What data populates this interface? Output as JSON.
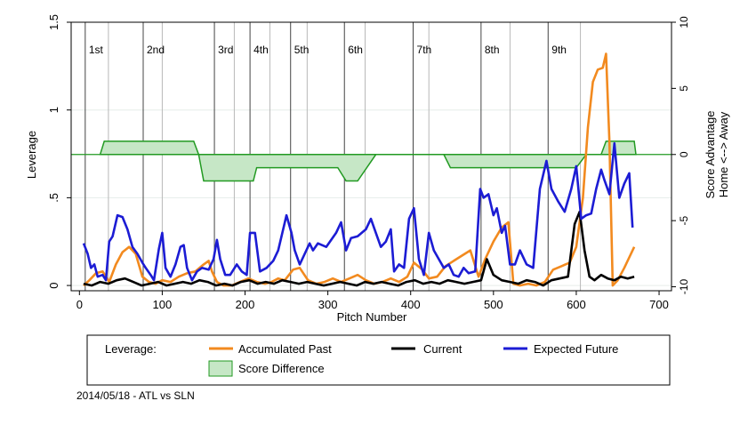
{
  "chart_data": {
    "type": "line",
    "x_label": "Pitch Number",
    "y_label": "Leverage",
    "y2_label_line1": "Score Advantage",
    "y2_label_line2": "Home <--> Away",
    "x_ticks": [
      0,
      100,
      200,
      300,
      400,
      500,
      600,
      700
    ],
    "y_ticks": [
      0,
      0.5,
      1,
      1.5
    ],
    "y_tick_labels": [
      "0",
      ".5",
      "1",
      "1.5"
    ],
    "y2_ticks": [
      -10,
      -5,
      0,
      5,
      10
    ],
    "xlim": [
      -10,
      715
    ],
    "ylim": [
      -0.03,
      1.5
    ],
    "y2lim": [
      -10.3,
      10
    ],
    "inning_lines": [
      {
        "x": 7,
        "label": "1st"
      },
      {
        "x": 77,
        "label": "2nd"
      },
      {
        "x": 163,
        "label": "3rd"
      },
      {
        "x": 206,
        "label": "4th"
      },
      {
        "x": 255,
        "label": "5th"
      },
      {
        "x": 320,
        "label": "6th"
      },
      {
        "x": 403,
        "label": "7th"
      },
      {
        "x": 485,
        "label": "8th"
      },
      {
        "x": 566,
        "label": "9th"
      }
    ],
    "half_inning_lines": [
      35,
      100,
      187,
      230,
      275,
      345,
      422,
      520,
      605
    ],
    "series": [
      {
        "name": "Accumulated Past",
        "color": "#f28a1f",
        "points": [
          [
            5,
            0.0
          ],
          [
            12,
            0.03
          ],
          [
            20,
            0.07
          ],
          [
            28,
            0.08
          ],
          [
            36,
            0.02
          ],
          [
            44,
            0.12
          ],
          [
            52,
            0.19
          ],
          [
            60,
            0.22
          ],
          [
            68,
            0.18
          ],
          [
            76,
            0.05
          ],
          [
            84,
            0.02
          ],
          [
            92,
            0.01
          ],
          [
            100,
            0.03
          ],
          [
            110,
            0.02
          ],
          [
            120,
            0.05
          ],
          [
            130,
            0.07
          ],
          [
            140,
            0.08
          ],
          [
            150,
            0.12
          ],
          [
            156,
            0.14
          ],
          [
            160,
            0.08
          ],
          [
            166,
            0.02
          ],
          [
            174,
            0.0
          ],
          [
            184,
            0.0
          ],
          [
            194,
            0.02
          ],
          [
            204,
            0.04
          ],
          [
            214,
            0.02
          ],
          [
            224,
            0.01
          ],
          [
            232,
            0.02
          ],
          [
            240,
            0.04
          ],
          [
            248,
            0.03
          ],
          [
            258,
            0.09
          ],
          [
            266,
            0.1
          ],
          [
            276,
            0.03
          ],
          [
            286,
            0.01
          ],
          [
            296,
            0.02
          ],
          [
            306,
            0.04
          ],
          [
            316,
            0.02
          ],
          [
            326,
            0.04
          ],
          [
            336,
            0.06
          ],
          [
            346,
            0.03
          ],
          [
            356,
            0.01
          ],
          [
            366,
            0.02
          ],
          [
            376,
            0.04
          ],
          [
            386,
            0.02
          ],
          [
            396,
            0.05
          ],
          [
            404,
            0.13
          ],
          [
            414,
            0.09
          ],
          [
            422,
            0.04
          ],
          [
            432,
            0.05
          ],
          [
            442,
            0.11
          ],
          [
            452,
            0.14
          ],
          [
            462,
            0.17
          ],
          [
            472,
            0.2
          ],
          [
            482,
            0.05
          ],
          [
            490,
            0.15
          ],
          [
            500,
            0.25
          ],
          [
            510,
            0.33
          ],
          [
            518,
            0.36
          ],
          [
            524,
            0.01
          ],
          [
            532,
            0.0
          ],
          [
            542,
            0.01
          ],
          [
            552,
            0.0
          ],
          [
            562,
            0.02
          ],
          [
            572,
            0.09
          ],
          [
            582,
            0.11
          ],
          [
            592,
            0.13
          ],
          [
            600,
            0.22
          ],
          [
            608,
            0.5
          ],
          [
            614,
            0.9
          ],
          [
            620,
            1.16
          ],
          [
            626,
            1.23
          ],
          [
            632,
            1.24
          ],
          [
            636,
            1.32
          ],
          [
            640,
            0.82
          ],
          [
            644,
            0.0
          ],
          [
            650,
            0.03
          ],
          [
            658,
            0.1
          ],
          [
            664,
            0.16
          ],
          [
            670,
            0.22
          ]
        ]
      },
      {
        "name": "Current",
        "color": "#000000",
        "points": [
          [
            5,
            0.01
          ],
          [
            15,
            0.0
          ],
          [
            25,
            0.02
          ],
          [
            35,
            0.01
          ],
          [
            45,
            0.03
          ],
          [
            55,
            0.04
          ],
          [
            65,
            0.02
          ],
          [
            75,
            0.0
          ],
          [
            85,
            0.01
          ],
          [
            95,
            0.02
          ],
          [
            105,
            0.0
          ],
          [
            115,
            0.01
          ],
          [
            125,
            0.02
          ],
          [
            135,
            0.01
          ],
          [
            145,
            0.03
          ],
          [
            155,
            0.02
          ],
          [
            165,
            0.0
          ],
          [
            175,
            0.01
          ],
          [
            185,
            0.0
          ],
          [
            195,
            0.02
          ],
          [
            205,
            0.03
          ],
          [
            215,
            0.01
          ],
          [
            225,
            0.02
          ],
          [
            235,
            0.01
          ],
          [
            245,
            0.03
          ],
          [
            255,
            0.02
          ],
          [
            265,
            0.01
          ],
          [
            275,
            0.02
          ],
          [
            285,
            0.01
          ],
          [
            295,
            0.0
          ],
          [
            305,
            0.01
          ],
          [
            315,
            0.02
          ],
          [
            325,
            0.01
          ],
          [
            335,
            0.0
          ],
          [
            345,
            0.02
          ],
          [
            355,
            0.01
          ],
          [
            365,
            0.02
          ],
          [
            375,
            0.01
          ],
          [
            385,
            0.0
          ],
          [
            395,
            0.02
          ],
          [
            405,
            0.03
          ],
          [
            415,
            0.01
          ],
          [
            425,
            0.02
          ],
          [
            435,
            0.01
          ],
          [
            445,
            0.03
          ],
          [
            455,
            0.02
          ],
          [
            465,
            0.01
          ],
          [
            475,
            0.02
          ],
          [
            485,
            0.03
          ],
          [
            492,
            0.15
          ],
          [
            500,
            0.06
          ],
          [
            510,
            0.03
          ],
          [
            520,
            0.02
          ],
          [
            530,
            0.01
          ],
          [
            540,
            0.03
          ],
          [
            550,
            0.02
          ],
          [
            560,
            0.0
          ],
          [
            570,
            0.03
          ],
          [
            580,
            0.04
          ],
          [
            590,
            0.05
          ],
          [
            598,
            0.35
          ],
          [
            604,
            0.42
          ],
          [
            610,
            0.2
          ],
          [
            616,
            0.05
          ],
          [
            622,
            0.03
          ],
          [
            630,
            0.06
          ],
          [
            638,
            0.04
          ],
          [
            646,
            0.03
          ],
          [
            654,
            0.05
          ],
          [
            662,
            0.04
          ],
          [
            670,
            0.05
          ]
        ]
      },
      {
        "name": "Expected Future",
        "color": "#1c1cd4",
        "points": [
          [
            5,
            0.24
          ],
          [
            10,
            0.18
          ],
          [
            14,
            0.1
          ],
          [
            18,
            0.12
          ],
          [
            22,
            0.05
          ],
          [
            28,
            0.06
          ],
          [
            32,
            0.03
          ],
          [
            36,
            0.25
          ],
          [
            40,
            0.28
          ],
          [
            46,
            0.4
          ],
          [
            52,
            0.39
          ],
          [
            58,
            0.32
          ],
          [
            64,
            0.22
          ],
          [
            70,
            0.18
          ],
          [
            76,
            0.13
          ],
          [
            80,
            0.1
          ],
          [
            86,
            0.06
          ],
          [
            90,
            0.03
          ],
          [
            96,
            0.21
          ],
          [
            100,
            0.3
          ],
          [
            104,
            0.1
          ],
          [
            110,
            0.05
          ],
          [
            116,
            0.12
          ],
          [
            122,
            0.22
          ],
          [
            126,
            0.23
          ],
          [
            130,
            0.1
          ],
          [
            136,
            0.03
          ],
          [
            142,
            0.08
          ],
          [
            148,
            0.1
          ],
          [
            156,
            0.09
          ],
          [
            162,
            0.15
          ],
          [
            166,
            0.26
          ],
          [
            170,
            0.15
          ],
          [
            176,
            0.06
          ],
          [
            182,
            0.06
          ],
          [
            190,
            0.12
          ],
          [
            196,
            0.08
          ],
          [
            202,
            0.06
          ],
          [
            206,
            0.3
          ],
          [
            212,
            0.3
          ],
          [
            218,
            0.08
          ],
          [
            226,
            0.1
          ],
          [
            234,
            0.14
          ],
          [
            240,
            0.2
          ],
          [
            250,
            0.4
          ],
          [
            256,
            0.3
          ],
          [
            260,
            0.2
          ],
          [
            266,
            0.12
          ],
          [
            272,
            0.18
          ],
          [
            278,
            0.24
          ],
          [
            282,
            0.2
          ],
          [
            288,
            0.24
          ],
          [
            298,
            0.22
          ],
          [
            310,
            0.3
          ],
          [
            316,
            0.36
          ],
          [
            322,
            0.2
          ],
          [
            328,
            0.27
          ],
          [
            336,
            0.28
          ],
          [
            346,
            0.32
          ],
          [
            352,
            0.38
          ],
          [
            358,
            0.3
          ],
          [
            364,
            0.22
          ],
          [
            370,
            0.25
          ],
          [
            376,
            0.32
          ],
          [
            380,
            0.08
          ],
          [
            386,
            0.12
          ],
          [
            392,
            0.1
          ],
          [
            398,
            0.38
          ],
          [
            404,
            0.44
          ],
          [
            410,
            0.15
          ],
          [
            416,
            0.06
          ],
          [
            422,
            0.3
          ],
          [
            428,
            0.2
          ],
          [
            434,
            0.15
          ],
          [
            440,
            0.1
          ],
          [
            446,
            0.12
          ],
          [
            452,
            0.06
          ],
          [
            458,
            0.05
          ],
          [
            464,
            0.1
          ],
          [
            470,
            0.07
          ],
          [
            478,
            0.08
          ],
          [
            484,
            0.55
          ],
          [
            488,
            0.5
          ],
          [
            494,
            0.52
          ],
          [
            500,
            0.4
          ],
          [
            504,
            0.44
          ],
          [
            510,
            0.3
          ],
          [
            514,
            0.34
          ],
          [
            520,
            0.12
          ],
          [
            526,
            0.12
          ],
          [
            532,
            0.2
          ],
          [
            540,
            0.12
          ],
          [
            548,
            0.1
          ],
          [
            556,
            0.55
          ],
          [
            564,
            0.71
          ],
          [
            570,
            0.55
          ],
          [
            578,
            0.48
          ],
          [
            586,
            0.42
          ],
          [
            594,
            0.55
          ],
          [
            600,
            0.68
          ],
          [
            606,
            0.38
          ],
          [
            612,
            0.4
          ],
          [
            618,
            0.41
          ],
          [
            624,
            0.55
          ],
          [
            630,
            0.66
          ],
          [
            634,
            0.6
          ],
          [
            640,
            0.52
          ],
          [
            646,
            0.81
          ],
          [
            652,
            0.5
          ],
          [
            658,
            0.58
          ],
          [
            664,
            0.64
          ],
          [
            668,
            0.33
          ]
        ]
      }
    ],
    "score_difference": {
      "name": "Score Difference",
      "fill": "#c6e7c6",
      "stroke": "#229a22",
      "points": [
        [
          25,
          0
        ],
        [
          30,
          1
        ],
        [
          138,
          1
        ],
        [
          144,
          0
        ],
        [
          150,
          -2
        ],
        [
          210,
          -2
        ],
        [
          214,
          -1
        ],
        [
          312,
          -1
        ],
        [
          322,
          -2
        ],
        [
          336,
          -2
        ],
        [
          358,
          0
        ],
        [
          440,
          0
        ],
        [
          448,
          -1
        ],
        [
          600,
          -1
        ],
        [
          612,
          0
        ],
        [
          630,
          0
        ],
        [
          636,
          1
        ],
        [
          670,
          1
        ],
        [
          672,
          0
        ]
      ]
    },
    "legend": {
      "title": "Leverage:",
      "items": [
        "Accumulated Past",
        "Current",
        "Expected Future",
        "Score Difference"
      ]
    },
    "footnote": "2014/05/18 - ATL vs SLN"
  }
}
